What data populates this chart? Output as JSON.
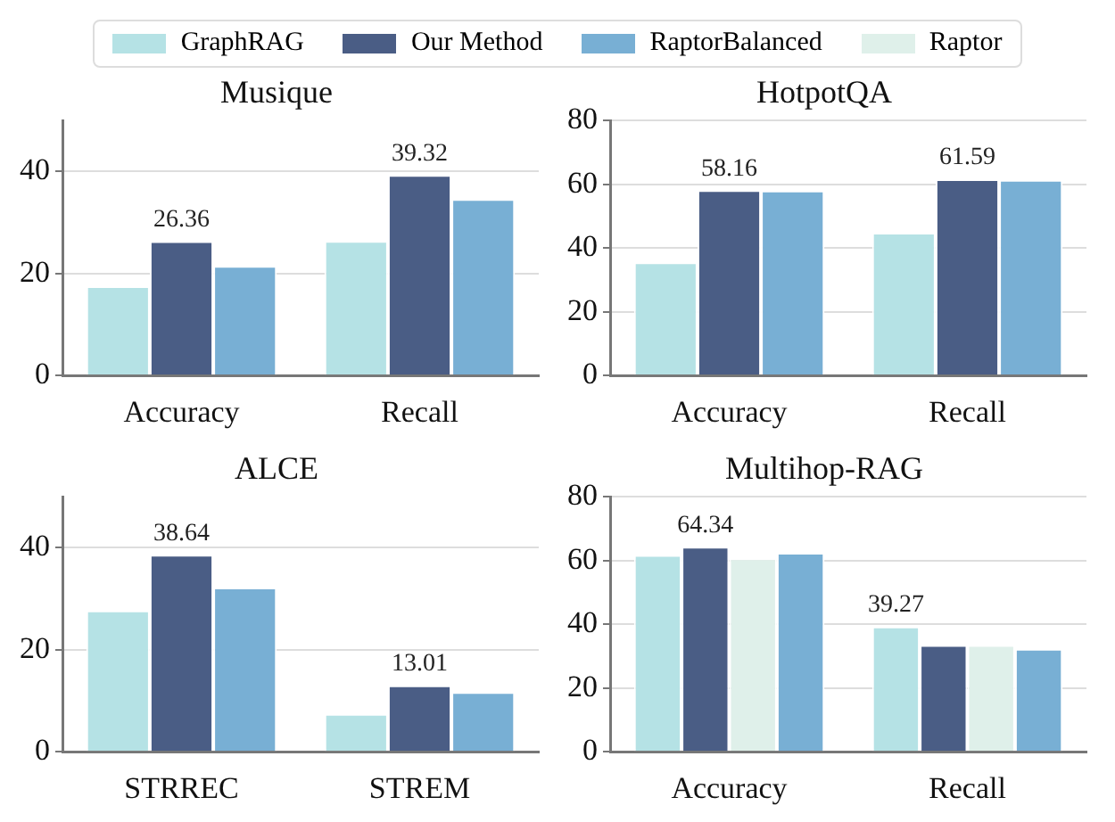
{
  "chart_data": [
    {
      "type": "bar",
      "title": "Musique",
      "categories": [
        "Accuracy",
        "Recall"
      ],
      "ylim": [
        0,
        50
      ],
      "yticks": [
        0,
        20,
        40
      ],
      "grid": "y",
      "legend": "top",
      "series": [
        {
          "name": "GraphRAG",
          "color": "#b5e2e5",
          "values": [
            17.5,
            26.4
          ]
        },
        {
          "name": "Our Method",
          "color": "#4a5d85",
          "values": [
            26.36,
            39.32
          ],
          "value_labels": [
            "26.36",
            "39.32"
          ]
        },
        {
          "name": "RaptorBalanced",
          "color": "#78afd4",
          "values": [
            21.5,
            34.6
          ]
        }
      ]
    },
    {
      "type": "bar",
      "title": "HotpotQA",
      "categories": [
        "Accuracy",
        "Recall"
      ],
      "ylim": [
        0,
        80
      ],
      "yticks": [
        0,
        20,
        40,
        60,
        80
      ],
      "grid": "y",
      "series": [
        {
          "name": "GraphRAG",
          "color": "#b5e2e5",
          "values": [
            35.5,
            44.8
          ]
        },
        {
          "name": "Our Method",
          "color": "#4a5d85",
          "values": [
            58.16,
            61.59
          ],
          "value_labels": [
            "58.16",
            "61.59"
          ]
        },
        {
          "name": "RaptorBalanced",
          "color": "#78afd4",
          "values": [
            58.0,
            61.4
          ]
        }
      ]
    },
    {
      "type": "bar",
      "title": "ALCE",
      "categories": [
        "STRREC",
        "STREM"
      ],
      "ylim": [
        0,
        50
      ],
      "yticks": [
        0,
        20,
        40
      ],
      "grid": "y",
      "series": [
        {
          "name": "GraphRAG",
          "color": "#b5e2e5",
          "values": [
            27.7,
            7.4
          ]
        },
        {
          "name": "Our Method",
          "color": "#4a5d85",
          "values": [
            38.64,
            13.01
          ],
          "value_labels": [
            "38.64",
            "13.01"
          ]
        },
        {
          "name": "RaptorBalanced",
          "color": "#78afd4",
          "values": [
            32.2,
            11.7
          ]
        }
      ]
    },
    {
      "type": "bar",
      "title": "Multihop-RAG",
      "categories": [
        "Accuracy",
        "Recall"
      ],
      "ylim": [
        0,
        80
      ],
      "yticks": [
        0,
        20,
        40,
        60,
        80
      ],
      "grid": "y",
      "series": [
        {
          "name": "GraphRAG",
          "color": "#b5e2e5",
          "values": [
            61.7,
            39.27
          ],
          "value_labels": [
            null,
            "39.27"
          ]
        },
        {
          "name": "Our Method",
          "color": "#4a5d85",
          "values": [
            64.34,
            33.5
          ],
          "value_labels": [
            "64.34",
            null
          ]
        },
        {
          "name": "Raptor",
          "color": "#dff0ea",
          "values": [
            60.7,
            33.5
          ]
        },
        {
          "name": "RaptorBalanced",
          "color": "#78afd4",
          "values": [
            62.4,
            32.3
          ]
        }
      ]
    }
  ]
}
